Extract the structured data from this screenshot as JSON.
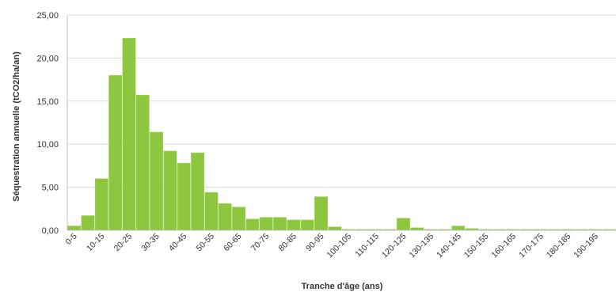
{
  "chart_data": {
    "type": "bar",
    "title": "",
    "xlabel": "Tranche d'âge (ans)",
    "ylabel": "Séquestration annuelle (tCO2/ha/an)",
    "ylim": [
      0,
      25
    ],
    "y_ticks": [
      "0,00",
      "5,00",
      "10,00",
      "15,00",
      "20,00",
      "25,00"
    ],
    "grid": true,
    "legend": "none",
    "bar_color": "#8dc63f",
    "categories": [
      "0-5",
      "5-10",
      "10-15",
      "15-20",
      "20-25",
      "25-30",
      "30-35",
      "35-40",
      "40-45",
      "45-50",
      "50-55",
      "55-60",
      "60-65",
      "65-70",
      "70-75",
      "75-80",
      "80-85",
      "85-90",
      "90-95",
      "95-100",
      "100-105",
      "105-110",
      "110-115",
      "115-120",
      "120-125",
      "125-130",
      "130-135",
      "135-140",
      "140-145",
      "145-150",
      "150-155",
      "155-160",
      "160-165",
      "165-170",
      "170-175",
      "175-180",
      "180-185",
      "185-190",
      "190-195",
      "195-200"
    ],
    "x_tick_labels": [
      "0-5",
      "10-15",
      "20-25",
      "30-35",
      "40-45",
      "50-55",
      "60-65",
      "70-75",
      "80-85",
      "90-95",
      "100-105",
      "110-115",
      "120-125",
      "130-135",
      "140-145",
      "150-155",
      "160-165",
      "170-175",
      "180-185",
      "190-195"
    ],
    "values": [
      0.5,
      1.7,
      6.0,
      18.0,
      22.3,
      15.7,
      11.4,
      9.2,
      7.8,
      9.0,
      4.4,
      3.1,
      2.7,
      1.3,
      1.5,
      1.5,
      1.2,
      1.2,
      3.9,
      0.4,
      0.1,
      0.1,
      0.1,
      0.1,
      1.4,
      0.3,
      0.1,
      0.1,
      0.5,
      0.2,
      0.1,
      0.1,
      0.1,
      0.1,
      0.1,
      0.1,
      0.1,
      0.1,
      0.1,
      0.1
    ]
  }
}
